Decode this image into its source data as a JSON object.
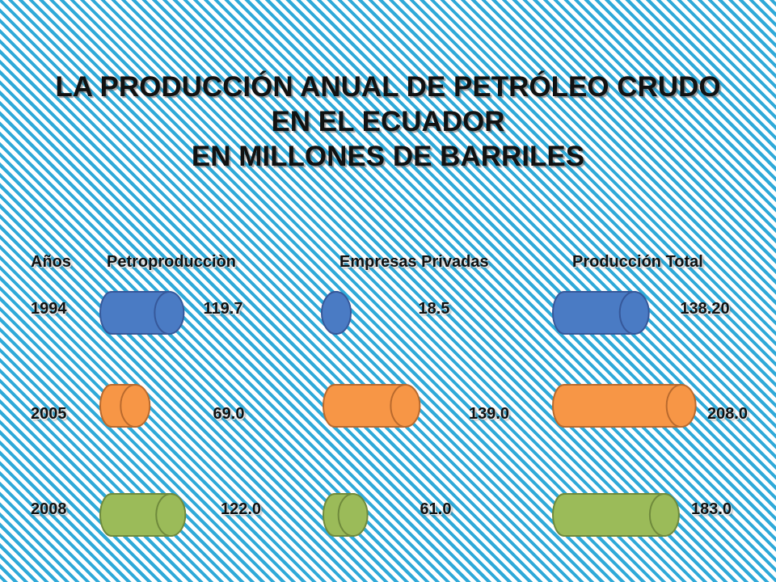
{
  "title": {
    "line1": "LA PRODUCCIÓN ANUAL DE PETRÓLEO CRUDO",
    "line2": "EN EL ECUADOR",
    "line3": "EN MILLONES DE BARRILES"
  },
  "headers": {
    "years": "Años",
    "petro": "Petroproducciòn",
    "private": "Empresas Privadas",
    "total": "Producción Total"
  },
  "rows": [
    {
      "year": "1994",
      "petro_label": "119.7",
      "private_label": "18.5",
      "total_label": "138.20",
      "color": "#4a7bc4",
      "border": "#36589a"
    },
    {
      "year": "2005",
      "petro_label": "69.0",
      "private_label": "139.0",
      "total_label": "208.0",
      "color": "#f79646",
      "border": "#b96a2e"
    },
    {
      "year": "2008",
      "petro_label": "122.0",
      "private_label": "61.0",
      "total_label": "183.0",
      "color": "#9bbb59",
      "border": "#6f8a3c"
    }
  ],
  "chart_data": {
    "type": "bar",
    "orientation": "horizontal",
    "bar_style": "cylinder",
    "categories": [
      "1994",
      "2005",
      "2008"
    ],
    "series": [
      {
        "name": "Petroproducciòn",
        "values": [
          119.7,
          69.0,
          122.0
        ]
      },
      {
        "name": "Empresas Privadas",
        "values": [
          18.5,
          139.0,
          61.0
        ]
      },
      {
        "name": "Producción Total",
        "values": [
          138.2,
          208.0,
          183.0
        ]
      }
    ],
    "category_colors": [
      "#4a7bc4",
      "#f79646",
      "#9bbb59"
    ]
  }
}
